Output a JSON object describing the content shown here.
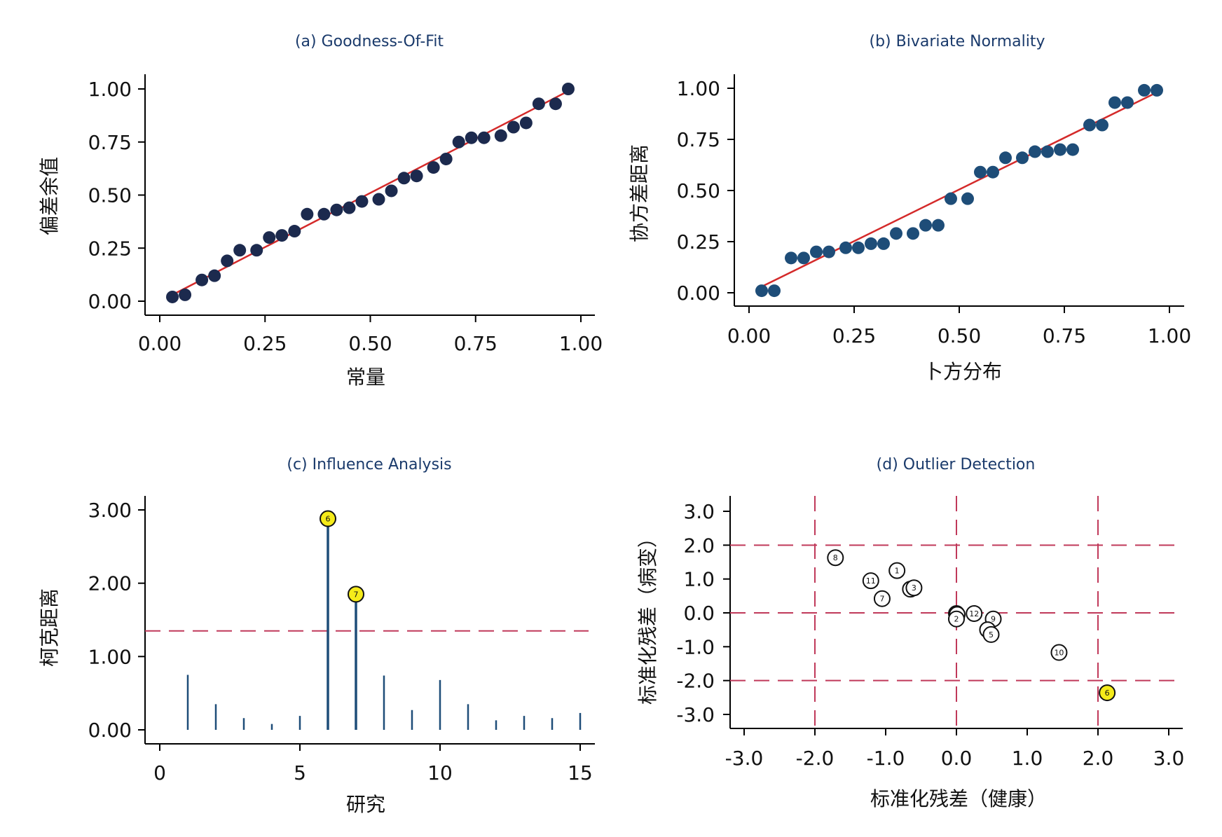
{
  "chart_data": [
    {
      "type": "scatter",
      "title": "(a) Goodness-Of-Fit",
      "xlabel": "常量",
      "ylabel": "偏差余值",
      "xlim": [
        0,
        1
      ],
      "ylim": [
        0,
        1
      ],
      "x_ticks": [
        "0.00",
        "0.25",
        "0.50",
        "0.75",
        "1.00"
      ],
      "y_ticks": [
        "0.00",
        "0.25",
        "0.50",
        "0.75",
        "1.00"
      ],
      "point_color": "#1c2a4e",
      "fit_line_color": "#d42a2a",
      "fit_line": {
        "x": [
          0.03,
          0.97
        ],
        "y": [
          0.03,
          0.99
        ]
      },
      "x": [
        0.03,
        0.06,
        0.1,
        0.13,
        0.16,
        0.19,
        0.23,
        0.26,
        0.29,
        0.32,
        0.35,
        0.39,
        0.42,
        0.45,
        0.48,
        0.52,
        0.55,
        0.58,
        0.61,
        0.65,
        0.68,
        0.71,
        0.74,
        0.77,
        0.81,
        0.84,
        0.87,
        0.9,
        0.94,
        0.97
      ],
      "y": [
        0.02,
        0.03,
        0.1,
        0.12,
        0.19,
        0.24,
        0.24,
        0.3,
        0.31,
        0.33,
        0.41,
        0.41,
        0.43,
        0.44,
        0.47,
        0.48,
        0.52,
        0.58,
        0.59,
        0.63,
        0.67,
        0.75,
        0.77,
        0.77,
        0.78,
        0.82,
        0.84,
        0.93,
        0.93,
        1.0
      ]
    },
    {
      "type": "scatter",
      "title": "(b) Bivariate Normality",
      "xlabel": "卜方分布",
      "ylabel": "协方差距离",
      "xlim": [
        0,
        1
      ],
      "ylim": [
        0,
        1
      ],
      "x_ticks": [
        "0.00",
        "0.25",
        "0.50",
        "0.75",
        "1.00"
      ],
      "y_ticks": [
        "0.00",
        "0.25",
        "0.50",
        "0.75",
        "1.00"
      ],
      "point_color": "#1e4d78",
      "fit_line_color": "#d42a2a",
      "fit_line": {
        "x": [
          0.03,
          0.97
        ],
        "y": [
          0.03,
          0.98
        ]
      },
      "x": [
        0.03,
        0.06,
        0.1,
        0.13,
        0.16,
        0.19,
        0.23,
        0.26,
        0.29,
        0.32,
        0.35,
        0.39,
        0.42,
        0.45,
        0.48,
        0.52,
        0.55,
        0.58,
        0.61,
        0.65,
        0.68,
        0.71,
        0.74,
        0.77,
        0.81,
        0.84,
        0.87,
        0.9,
        0.94,
        0.97
      ],
      "y": [
        0.01,
        0.01,
        0.17,
        0.17,
        0.2,
        0.2,
        0.22,
        0.22,
        0.24,
        0.24,
        0.29,
        0.29,
        0.33,
        0.33,
        0.46,
        0.46,
        0.59,
        0.59,
        0.66,
        0.66,
        0.69,
        0.69,
        0.7,
        0.7,
        0.82,
        0.82,
        0.93,
        0.93,
        0.99,
        0.99
      ]
    },
    {
      "type": "bar",
      "title": "(c) Influence Analysis",
      "xlabel": "研究",
      "ylabel": "柯克距离",
      "xlim": [
        -1,
        15.5
      ],
      "ylim": [
        0,
        3.1
      ],
      "x_ticks": [
        "0",
        "5",
        "10",
        "15"
      ],
      "y_ticks": [
        "0.00",
        "1.00",
        "2.00",
        "3.00"
      ],
      "threshold": 1.35,
      "threshold_color": "#c0395a",
      "stem_color": "#1e4d78",
      "highlight_color": "#f5eb1a",
      "categories": [
        1,
        2,
        3,
        4,
        5,
        6,
        7,
        8,
        9,
        10,
        11,
        12,
        13,
        14,
        15
      ],
      "values": [
        0.75,
        0.35,
        0.16,
        0.08,
        0.19,
        2.88,
        1.85,
        0.74,
        0.27,
        0.68,
        0.35,
        0.13,
        0.19,
        0.16,
        0.23
      ],
      "highlighted": [
        6,
        7
      ]
    },
    {
      "type": "scatter",
      "title": "(d) Outlier Detection",
      "xlabel": "标准化残差（健康）",
      "ylabel": "标准化残差（病变）",
      "xlim": [
        -3.0,
        3.0
      ],
      "ylim": [
        -3.0,
        3.0
      ],
      "x_ticks": [
        "-3.0",
        "-2.0",
        "-1.0",
        "0.0",
        "1.0",
        "2.0",
        "3.0"
      ],
      "y_ticks": [
        "-3.0",
        "-2.0",
        "-1.0",
        "0.0",
        "1.0",
        "2.0",
        "3.0"
      ],
      "ref_lines": [
        -2.0,
        0.0,
        2.0
      ],
      "ref_color": "#c0395a",
      "highlight_color": "#f5eb1a",
      "points": [
        {
          "label": "8",
          "x": -1.71,
          "y": 1.63
        },
        {
          "label": "1",
          "x": -0.84,
          "y": 1.25
        },
        {
          "label": "11",
          "x": -1.21,
          "y": 0.95
        },
        {
          "label": "7",
          "x": -1.05,
          "y": 0.42
        },
        {
          "label": "13",
          "x": -0.65,
          "y": 0.7
        },
        {
          "label": "3",
          "x": -0.6,
          "y": 0.74
        },
        {
          "label": "14",
          "x": 0.0,
          "y": -0.02
        },
        {
          "label": "15",
          "x": 0.01,
          "y": -0.05
        },
        {
          "label": "2",
          "x": 0.0,
          "y": -0.18
        },
        {
          "label": "12",
          "x": 0.25,
          "y": -0.02
        },
        {
          "label": "9",
          "x": 0.52,
          "y": -0.18
        },
        {
          "label": "4",
          "x": 0.44,
          "y": -0.5
        },
        {
          "label": "5",
          "x": 0.49,
          "y": -0.64
        },
        {
          "label": "10",
          "x": 1.45,
          "y": -1.17
        },
        {
          "label": "6",
          "x": 2.13,
          "y": -2.36,
          "highlight": true
        }
      ]
    }
  ]
}
